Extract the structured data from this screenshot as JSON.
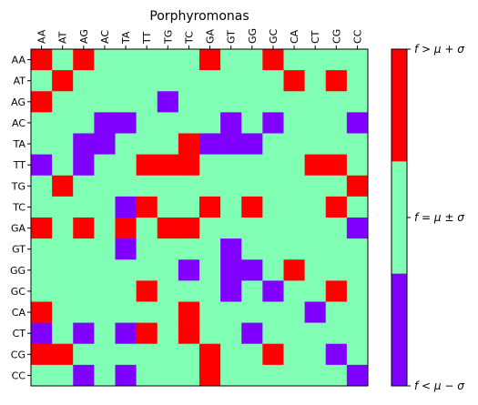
{
  "chart_data": {
    "type": "heatmap",
    "title": "Porphyromonas",
    "x_categories": [
      "AA",
      "AT",
      "AG",
      "AC",
      "TA",
      "TT",
      "TG",
      "TC",
      "GA",
      "GT",
      "GG",
      "GC",
      "CA",
      "CT",
      "CG",
      "CC"
    ],
    "y_categories": [
      "AA",
      "AT",
      "AG",
      "AC",
      "TA",
      "TT",
      "TG",
      "TC",
      "GA",
      "GT",
      "GG",
      "GC",
      "CA",
      "CT",
      "CG",
      "CC"
    ],
    "value_encoding": {
      "-1": "below",
      "0": "within",
      "1": "above"
    },
    "colors": {
      "below": "#8000ff",
      "within": "#80ffb4",
      "above": "#ff0000"
    },
    "matrix": [
      [
        1,
        0,
        1,
        0,
        0,
        0,
        0,
        0,
        1,
        0,
        0,
        1,
        0,
        0,
        0,
        0
      ],
      [
        0,
        1,
        0,
        0,
        0,
        0,
        0,
        0,
        0,
        0,
        0,
        0,
        1,
        0,
        1,
        0
      ],
      [
        1,
        0,
        0,
        0,
        0,
        0,
        -1,
        0,
        0,
        0,
        0,
        0,
        0,
        0,
        0,
        0
      ],
      [
        0,
        0,
        0,
        -1,
        -1,
        0,
        0,
        0,
        0,
        -1,
        0,
        -1,
        0,
        0,
        0,
        -1
      ],
      [
        0,
        0,
        -1,
        -1,
        0,
        0,
        0,
        1,
        -1,
        -1,
        -1,
        0,
        0,
        0,
        0,
        0
      ],
      [
        -1,
        0,
        -1,
        0,
        0,
        1,
        1,
        1,
        0,
        0,
        0,
        0,
        0,
        1,
        1,
        0
      ],
      [
        0,
        1,
        0,
        0,
        0,
        0,
        0,
        0,
        0,
        0,
        0,
        0,
        0,
        0,
        0,
        1
      ],
      [
        0,
        0,
        0,
        0,
        -1,
        1,
        0,
        0,
        1,
        0,
        1,
        0,
        0,
        0,
        1,
        0
      ],
      [
        1,
        0,
        1,
        0,
        1,
        0,
        1,
        1,
        0,
        0,
        0,
        0,
        0,
        0,
        0,
        -1
      ],
      [
        0,
        0,
        0,
        0,
        -1,
        0,
        0,
        0,
        0,
        -1,
        0,
        0,
        0,
        0,
        0,
        0
      ],
      [
        0,
        0,
        0,
        0,
        0,
        0,
        0,
        -1,
        0,
        -1,
        -1,
        0,
        1,
        0,
        0,
        0
      ],
      [
        0,
        0,
        0,
        0,
        0,
        1,
        0,
        0,
        0,
        -1,
        0,
        -1,
        0,
        0,
        1,
        0
      ],
      [
        1,
        0,
        0,
        0,
        0,
        0,
        0,
        1,
        0,
        0,
        0,
        0,
        0,
        -1,
        0,
        0
      ],
      [
        -1,
        0,
        -1,
        0,
        -1,
        1,
        0,
        1,
        0,
        0,
        -1,
        0,
        0,
        0,
        0,
        0
      ],
      [
        1,
        1,
        0,
        0,
        0,
        0,
        0,
        0,
        1,
        0,
        0,
        1,
        0,
        0,
        -1,
        0
      ],
      [
        0,
        0,
        -1,
        0,
        -1,
        0,
        0,
        0,
        1,
        0,
        0,
        0,
        0,
        0,
        0,
        -1
      ]
    ],
    "colorbar": {
      "labels": [
        "f > μ + σ",
        "f = μ ± σ",
        "f < μ − σ"
      ]
    },
    "grid": false,
    "legend": "right"
  }
}
